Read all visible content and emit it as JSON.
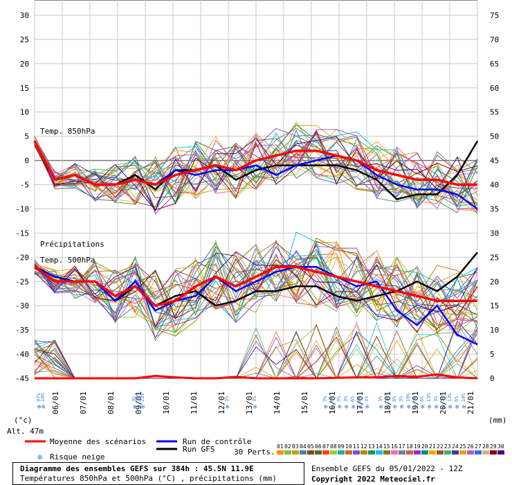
{
  "chart_data": {
    "type": "line",
    "left_axis": {
      "unit": "(°c)",
      "ticks": [
        30,
        25,
        20,
        15,
        10,
        5,
        0,
        -5,
        -10,
        -15,
        -20,
        -25,
        -30,
        -35,
        -40,
        -45
      ],
      "range": [
        -45,
        30
      ]
    },
    "right_axis": {
      "unit": "(mm)",
      "ticks": [
        75,
        70,
        65,
        60,
        55,
        50,
        45,
        40,
        35,
        30,
        25,
        20,
        15,
        10,
        5,
        0
      ],
      "range": [
        0,
        75
      ]
    },
    "altitude": "Alt. 47m",
    "dates": [
      "06/01",
      "07/01",
      "08/01",
      "09/01",
      "10/01",
      "11/01",
      "12/01",
      "13/01",
      "14/01",
      "15/01",
      "16/01",
      "17/01",
      "18/01",
      "19/01",
      "20/01",
      "21/01"
    ],
    "panel_labels": {
      "t850": "Temp. 850hPa",
      "precip": "Précipitations",
      "t500": "Temp. 500hPa"
    },
    "series": [
      {
        "name": "Moyenne des scénarios",
        "color": "#ff0000",
        "t850": [
          4,
          -4,
          -3,
          -5,
          -5,
          -4,
          -5,
          -3,
          -2,
          -1,
          -2,
          0,
          1,
          2,
          2,
          1,
          0,
          -2,
          -3,
          -4,
          -4,
          -5,
          -5
        ],
        "t500": [
          -22,
          -25,
          -25,
          -25,
          -28,
          -26,
          -30,
          -29,
          -26,
          -24,
          -26,
          -24,
          -22,
          -22,
          -23,
          -24,
          -25,
          -26,
          -27,
          -28,
          -29,
          -29,
          -29
        ]
      },
      {
        "name": "Run de contrôle",
        "color": "#0000ff",
        "t850": [
          4,
          -4,
          -3,
          -5,
          -5,
          -4,
          -5,
          -2,
          -3,
          -2,
          -2,
          -1,
          -3,
          -1,
          0,
          1,
          0,
          -3,
          -5,
          -6,
          -6,
          -7,
          -10
        ],
        "t500": [
          -22,
          -24,
          -25,
          -25,
          -29,
          -25,
          -31,
          -29,
          -28,
          -24,
          -27,
          -25,
          -23,
          -22,
          -22,
          -24,
          -26,
          -25,
          -31,
          -34,
          -30,
          -36,
          -38
        ]
      },
      {
        "name": "Run GFS",
        "color": "#000000",
        "t850": [
          4,
          -4,
          -3,
          -5,
          -5,
          -3,
          -6,
          -2,
          -2,
          -1,
          -4,
          -2,
          -1,
          -1,
          -1,
          -1,
          -2,
          -4,
          -8,
          -7,
          -7,
          -3,
          4
        ],
        "t500": [
          -22,
          -24,
          -25,
          -25,
          -29,
          -26,
          -30,
          -28,
          -27,
          -30,
          -29,
          -27,
          -27,
          -26,
          -26,
          -28,
          -29,
          -28,
          -27,
          -25,
          -27,
          -24,
          -19
        ]
      }
    ],
    "precip_mean": [
      0,
      0,
      0,
      0,
      0,
      0,
      0.5,
      0.2,
      0,
      0,
      0.3,
      0,
      0,
      0,
      0,
      0.1,
      0.2,
      0.2,
      0.5,
      0.3,
      0.8,
      0.2,
      0
    ],
    "snow_risk": [
      {
        "label": "97%",
        "x": 0.2
      },
      {
        "label": "10%",
        "x": 0.35
      },
      {
        "label": "3%",
        "x": 3.65
      },
      {
        "label": "38%",
        "x": 3.8
      },
      {
        "label": "23%",
        "x": 3.95
      },
      {
        "label": "3%",
        "x": 7.0
      },
      {
        "label": "3%",
        "x": 8.0
      },
      {
        "label": "3%",
        "x": 10.55
      },
      {
        "label": "6%",
        "x": 10.8
      },
      {
        "label": "3%",
        "x": 11.05
      },
      {
        "label": "3%",
        "x": 11.3
      },
      {
        "label": "6%",
        "x": 11.55
      },
      {
        "label": "6%",
        "x": 11.8
      },
      {
        "label": "3%",
        "x": 12.05
      },
      {
        "label": "3%",
        "x": 12.55
      },
      {
        "label": "10%",
        "x": 12.8
      },
      {
        "label": "6%",
        "x": 13.05
      },
      {
        "label": "3%",
        "x": 13.3
      },
      {
        "label": "10%",
        "x": 13.55
      },
      {
        "label": "3%",
        "x": 13.8
      },
      {
        "label": "6%",
        "x": 14.05
      },
      {
        "label": "13%",
        "x": 14.3
      },
      {
        "label": "3%",
        "x": 14.55
      },
      {
        "label": "10%",
        "x": 14.8
      },
      {
        "label": "13%",
        "x": 15.05
      },
      {
        "label": "6%",
        "x": 15.3
      },
      {
        "label": "10%",
        "x": 15.55
      }
    ]
  },
  "legend": {
    "mean": "Moyenne des scénarios",
    "control": "Run de contrôle",
    "gfs": "Run GFS",
    "snow": "Risque neige",
    "perts": "30 Perts.",
    "pert_numbers": [
      "01",
      "02",
      "03",
      "04",
      "05",
      "06",
      "07",
      "08",
      "09",
      "10",
      "11",
      "12",
      "13",
      "14",
      "15",
      "16",
      "17",
      "18",
      "19",
      "20",
      "21",
      "22",
      "23",
      "24",
      "25",
      "26",
      "27",
      "28",
      "29",
      "30"
    ],
    "pert_colors": [
      "#ff8c00",
      "#7fbf3f",
      "#c8a000",
      "#4682b4",
      "#8b4513",
      "#556b2f",
      "#ff4500",
      "#9acd32",
      "#20b2aa",
      "#d2691e",
      "#6a5acd",
      "#b8860b",
      "#2e8b57",
      "#00c0ff",
      "#808000",
      "#ff69b4",
      "#708090",
      "#cd5c5c",
      "#9932cc",
      "#008b8b",
      "#ffa500",
      "#a0522d",
      "#3cb371",
      "#483d8b",
      "#daa520",
      "#ba55d3",
      "#4169e1",
      "#d2b48c",
      "#8b0000",
      "#4b0082"
    ]
  },
  "footer": {
    "title": "Diagramme des ensembles GEFS sur 384h : 45.5N 11.9E",
    "subtitle": "Températures 850hPa et 500hPa (°C) , précipitations (mm)",
    "ensemble_date": "Ensemble GEFS du 05/01/2022 - 12Z",
    "copyright": "Copyright 2022 Meteociel.fr"
  }
}
